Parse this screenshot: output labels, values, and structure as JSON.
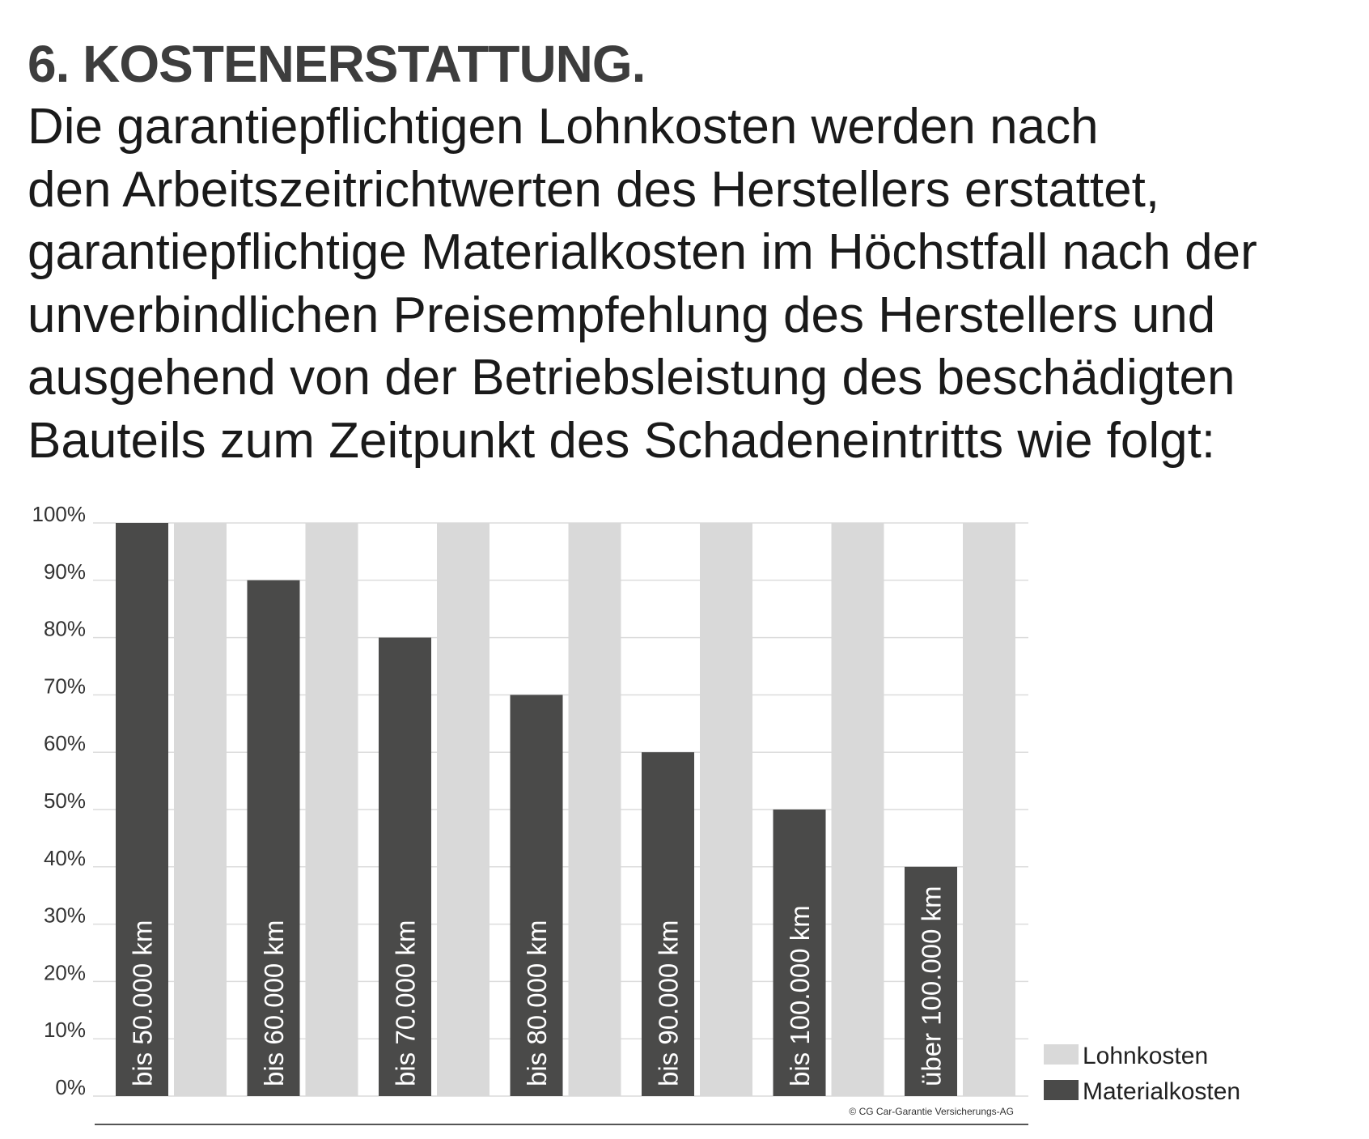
{
  "heading": "6. KOSTENERSTATTUNG.",
  "body_lines": [
    "Die garantiepflichtigen Lohnkosten werden nach",
    "den Arbeitszeitrichtwerten des Herstellers erstattet,",
    "garantiepflichtige Materialkosten im Höchstfall nach der",
    "unverbindlichen Preisempfehlung des Herstellers und",
    "ausgehend von der Betriebsleistung des beschädigten",
    "Bauteils zum Zeitpunkt des Schadeneintritts wie folgt:"
  ],
  "chart_data": {
    "type": "bar",
    "categories": [
      "bis 50.000 km",
      "bis 60.000 km",
      "bis 70.000 km",
      "bis 80.000 km",
      "bis 90.000 km",
      "bis 100.000 km",
      "über 100.000 km"
    ],
    "series": [
      {
        "name": "Materialkosten",
        "color": "#4a4a49",
        "values": [
          100,
          90,
          80,
          70,
          60,
          50,
          40
        ]
      },
      {
        "name": "Lohnkosten",
        "color": "#d9d9d9",
        "values": [
          100,
          100,
          100,
          100,
          100,
          100,
          100
        ]
      }
    ],
    "ylim": [
      0,
      100
    ],
    "yticks": [
      "0%",
      "10%",
      "20%",
      "30%",
      "40%",
      "50%",
      "60%",
      "70%",
      "80%",
      "90%",
      "100%"
    ],
    "grid": true,
    "legend": [
      "Lohnkosten",
      "Materialkosten"
    ],
    "legend_position": "bottom-right",
    "copyright": "© CG Car-Garantie Versicherungs-AG"
  }
}
